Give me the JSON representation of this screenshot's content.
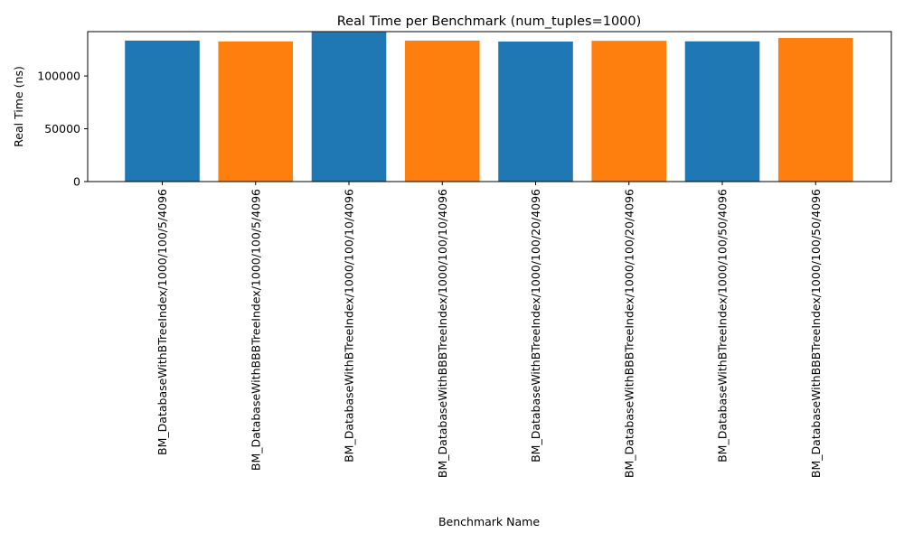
{
  "chart_data": {
    "type": "bar",
    "title": "Real Time per Benchmark (num_tuples=1000)",
    "xlabel": "Benchmark Name",
    "ylabel": "Real Time (ns)",
    "ylim": [
      0,
      142000
    ],
    "yticks": [
      0,
      50000,
      100000
    ],
    "grid": false,
    "categories": [
      "BM_DatabaseWithBTreeIndex/1000/100/5/4096",
      "BM_DatabaseWithBBBTreeIndex/1000/100/5/4096",
      "BM_DatabaseWithBTreeIndex/1000/100/10/4096",
      "BM_DatabaseWithBBBTreeIndex/1000/100/10/4096",
      "BM_DatabaseWithBTreeIndex/1000/100/20/4096",
      "BM_DatabaseWithBBBTreeIndex/1000/100/20/4096",
      "BM_DatabaseWithBTreeIndex/1000/100/50/4096",
      "BM_DatabaseWithBBBTreeIndex/1000/100/50/4096"
    ],
    "values": [
      133500,
      132700,
      141500,
      133500,
      132600,
      133300,
      132800,
      136000
    ],
    "bar_colors": [
      "#1f77b4",
      "#ff7f0e",
      "#1f77b4",
      "#ff7f0e",
      "#1f77b4",
      "#ff7f0e",
      "#1f77b4",
      "#ff7f0e"
    ]
  }
}
